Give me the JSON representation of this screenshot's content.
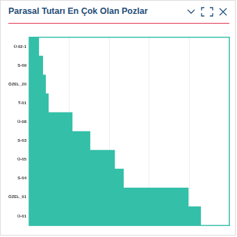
{
  "chart_data": {
    "type": "bar",
    "title": "Parasal Tutarı En Çok Olan Pozlar",
    "orientation": "horizontal",
    "categories": [
      "Ü-02-1",
      "S-09",
      "ÖZEL_20",
      "T-01",
      "Ü-08",
      "S-03",
      "Ü-05",
      "S-04",
      "ÖZEL_01",
      "Ü-01"
    ],
    "values": [
      4.8,
      6.8,
      8.2,
      9.6,
      21.5,
      30.4,
      42.7,
      47.1,
      79.5,
      85.7
    ],
    "color": "#34bfa8",
    "xlim": [
      0,
      100
    ],
    "xticks": [
      0,
      20,
      40,
      60,
      80,
      100
    ],
    "grid": true,
    "tick_labels": "y"
  }
}
